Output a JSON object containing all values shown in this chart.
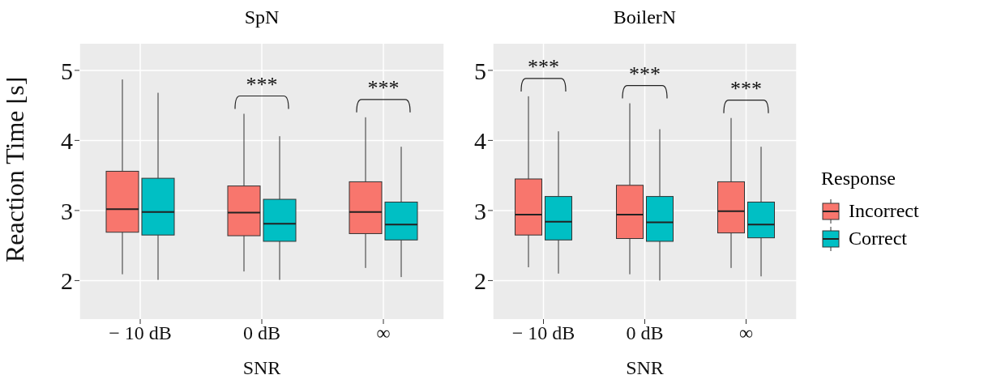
{
  "chart_data": [
    {
      "type": "box",
      "title": "SpN",
      "xlabel": "SNR",
      "ylabel": "Reaction Time [s]",
      "categories": [
        "− 10 dB",
        "0 dB",
        "∞"
      ],
      "ylim": [
        1.45,
        5.38
      ],
      "yticks": [
        2,
        3,
        4,
        5
      ],
      "grid": true,
      "legend": false,
      "series": [
        {
          "color": "#f8766d",
          "boxes": [
            {
              "low": 2.09,
              "q1": 2.69,
              "median": 3.02,
              "q3": 3.56,
              "high": 4.87
            },
            {
              "low": 2.13,
              "q1": 2.64,
              "median": 2.97,
              "q3": 3.35,
              "high": 4.38
            },
            {
              "low": 2.18,
              "q1": 2.67,
              "median": 2.98,
              "q3": 3.41,
              "high": 4.33
            }
          ]
        },
        {
          "color": "#00bfc4",
          "boxes": [
            {
              "low": 2.01,
              "q1": 2.65,
              "median": 2.98,
              "q3": 3.46,
              "high": 4.68
            },
            {
              "low": 2.01,
              "q1": 2.56,
              "median": 2.81,
              "q3": 3.16,
              "high": 4.06
            },
            {
              "low": 2.05,
              "q1": 2.58,
              "median": 2.8,
              "q3": 3.12,
              "high": 3.91
            }
          ]
        }
      ],
      "annotations": [
        "***",
        "***"
      ]
    },
    {
      "type": "box",
      "title": "BoilerN",
      "xlabel": "SNR",
      "categories": [
        "− 10 dB",
        "0 dB",
        "∞"
      ],
      "ylim": [
        1.45,
        5.38
      ],
      "yticks": [
        2,
        3,
        4,
        5
      ],
      "grid": true,
      "legend": "right",
      "legend_title": "Response",
      "series": [
        {
          "name": "Incorrect",
          "color": "#f8766d",
          "boxes": [
            {
              "low": 2.19,
              "q1": 2.65,
              "median": 2.94,
              "q3": 3.45,
              "high": 4.63
            },
            {
              "low": 2.09,
              "q1": 2.6,
              "median": 2.94,
              "q3": 3.36,
              "high": 4.53
            },
            {
              "low": 2.18,
              "q1": 2.68,
              "median": 2.99,
              "q3": 3.41,
              "high": 4.32
            }
          ]
        },
        {
          "name": "Correct",
          "color": "#00bfc4",
          "boxes": [
            {
              "low": 2.1,
              "q1": 2.58,
              "median": 2.84,
              "q3": 3.2,
              "high": 4.13
            },
            {
              "low": 2.0,
              "q1": 2.56,
              "median": 2.83,
              "q3": 3.2,
              "high": 4.16
            },
            {
              "low": 2.06,
              "q1": 2.61,
              "median": 2.8,
              "q3": 3.12,
              "high": 3.91
            }
          ]
        }
      ],
      "annotations": [
        "***",
        "***",
        "***"
      ]
    }
  ]
}
